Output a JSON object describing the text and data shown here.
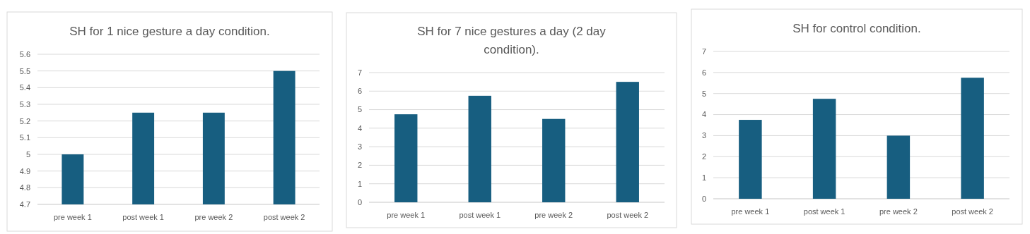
{
  "chart_data": [
    {
      "type": "bar",
      "title": "SH for 1 nice gesture a day condition.",
      "categories": [
        "pre week 1",
        "post week 1",
        "pre week 2",
        "post week 2"
      ],
      "values": [
        5,
        5.25,
        5.25,
        5.5
      ],
      "color": "#175e80",
      "ylim": [
        4.7,
        5.6
      ],
      "yticks": [
        4.7,
        4.8,
        4.9,
        {
          "value": 5,
          "label": "5"
        },
        5.1,
        5.2,
        5.3,
        5.4,
        5.5,
        5.6
      ],
      "grid": "y"
    },
    {
      "type": "bar",
      "title": "SH for 7 nice gestures a day (2 day condition).",
      "categories": [
        "pre week 1",
        "post week 1",
        "pre week 2",
        "post week 2"
      ],
      "values": [
        4.75,
        5.75,
        4.5,
        6.5
      ],
      "color": "#175e80",
      "ylim": [
        0,
        7
      ],
      "yticks": [
        0,
        1,
        2,
        3,
        4,
        5,
        6,
        7
      ],
      "grid": "y"
    },
    {
      "type": "bar",
      "title": "SH for control condition.",
      "categories": [
        "pre week 1",
        "post week 1",
        "pre week 2",
        "post week 2"
      ],
      "values": [
        3.75,
        4.75,
        3,
        5.75
      ],
      "color": "#175e80",
      "ylim": [
        0,
        7
      ],
      "yticks": [
        0,
        1,
        2,
        3,
        4,
        5,
        6,
        7
      ],
      "grid": "y"
    }
  ]
}
